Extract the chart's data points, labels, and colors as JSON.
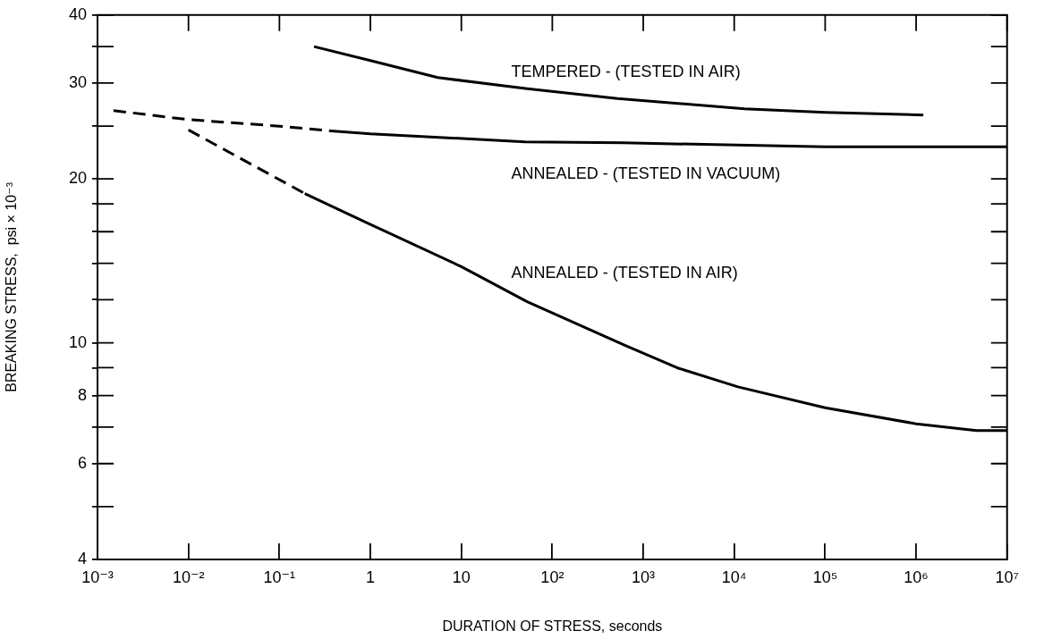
{
  "chart_data": {
    "type": "line",
    "xlabel": "DURATION OF STRESS, seconds",
    "ylabel": "BREAKING STRESS,  psi × 10⁻³",
    "log": "xy",
    "marker": "none",
    "xlim": [
      0.001,
      10000000
    ],
    "ylim": [
      4,
      40
    ],
    "xticks": [
      {
        "value": 0.001,
        "label": "10⁻³"
      },
      {
        "value": 0.01,
        "label": "10⁻²"
      },
      {
        "value": 0.1,
        "label": "10⁻¹"
      },
      1,
      10,
      {
        "value": 100,
        "label": "10²"
      },
      {
        "value": 1000,
        "label": "10³"
      },
      {
        "value": 10000,
        "label": "10⁴"
      },
      {
        "value": 100000,
        "label": "10⁵"
      },
      {
        "value": 1000000,
        "label": "10⁶"
      },
      {
        "value": 10000000,
        "label": "10⁷"
      }
    ],
    "yticks": [
      4,
      {
        "value": 5,
        "label": null
      },
      6,
      {
        "value": 7,
        "label": null
      },
      8,
      {
        "value": 9,
        "label": null
      },
      10,
      {
        "value": 12,
        "label": null
      },
      {
        "value": 14,
        "label": null
      },
      {
        "value": 16,
        "label": null
      },
      {
        "value": 18,
        "label": null
      },
      20,
      {
        "value": 25,
        "label": null
      },
      30,
      {
        "value": 35,
        "label": null
      },
      40
    ],
    "series": [
      {
        "color": "#000000",
        "line_style": "solid",
        "x": [
          0.24,
          1,
          5.5,
          53,
          520,
          13000,
          100000,
          1200000
        ],
        "values": [
          35.0,
          33.0,
          30.7,
          29.3,
          28.1,
          26.9,
          26.5,
          26.2
        ]
      },
      {
        "color": "#000000",
        "line_style": "dashed",
        "x": [
          0.0015,
          0.01,
          0.1,
          0.37
        ],
        "values": [
          26.7,
          25.7,
          25.0,
          24.5
        ]
      },
      {
        "color": "#000000",
        "line_style": "solid",
        "x": [
          0.37,
          1,
          50,
          600,
          100000,
          10000000
        ],
        "values": [
          24.5,
          24.2,
          23.4,
          23.3,
          22.9,
          22.9
        ]
      },
      {
        "color": "#000000",
        "line_style": "dashed",
        "x": [
          0.01,
          0.19
        ],
        "values": [
          24.6,
          18.8
        ]
      },
      {
        "color": "#000000",
        "line_style": "solid",
        "x": [
          0.19,
          1,
          10,
          53,
          620,
          2350,
          11000,
          100000,
          1000000,
          4600000,
          10000000
        ],
        "values": [
          18.8,
          16.5,
          13.8,
          11.9,
          9.9,
          9.0,
          8.3,
          7.6,
          7.1,
          6.9,
          6.9
        ]
      }
    ],
    "annotations": [
      "TEMPERED - (TESTED IN AIR)",
      "ANNEALED - (TESTED IN VACUUM)",
      "ANNEALED - (TESTED IN AIR)"
    ]
  }
}
